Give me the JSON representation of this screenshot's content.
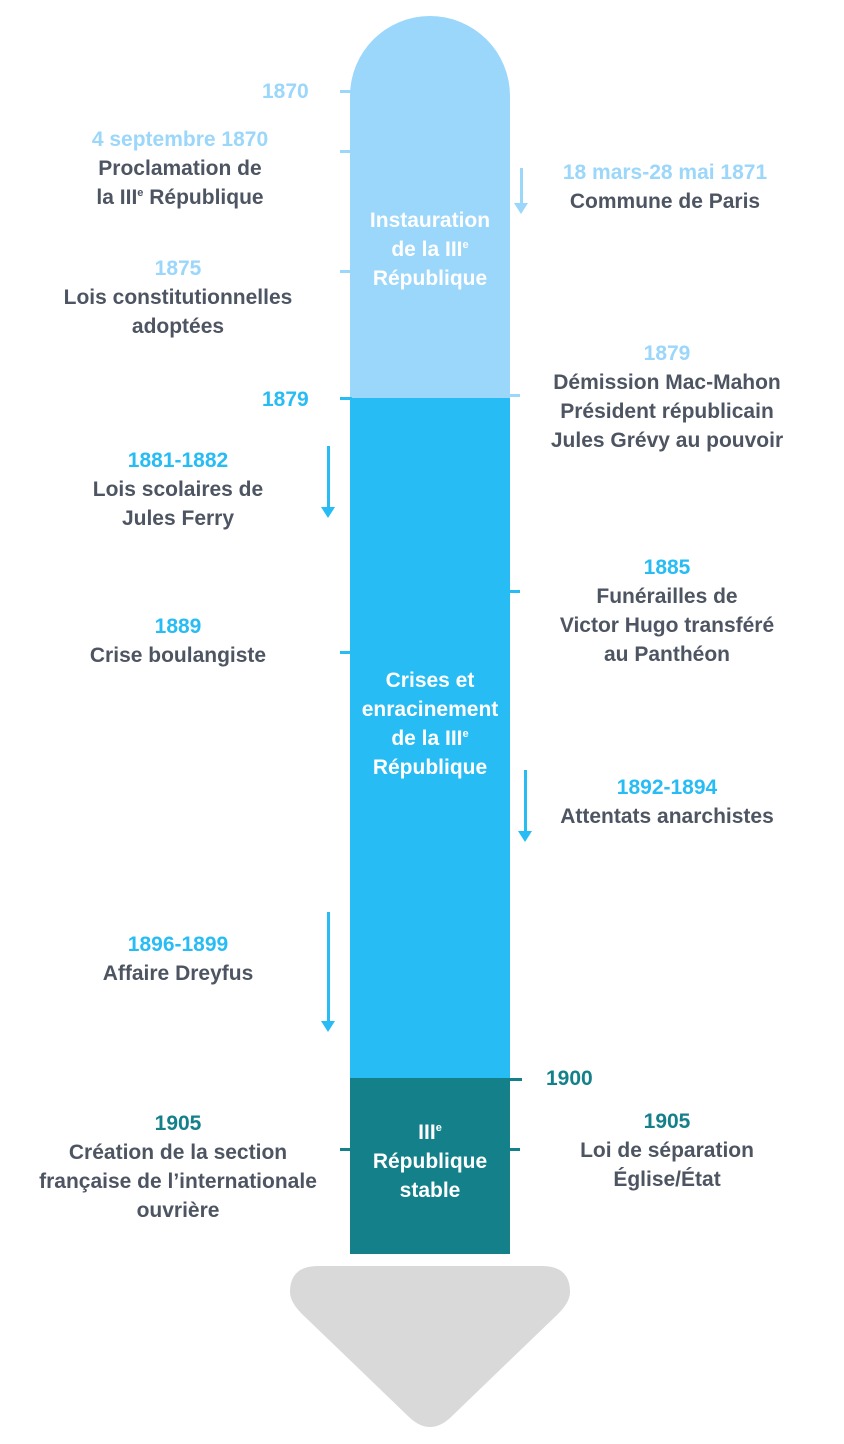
{
  "segments": {
    "instauration": {
      "label_1": "Instauration",
      "label_2": "de la III",
      "label_2_sup": "e",
      "label_3": "République"
    },
    "crises": {
      "label_1": "Crises et",
      "label_2": "enracinement",
      "label_3": "de la III",
      "label_3_sup": "e",
      "label_4": "République"
    },
    "stable": {
      "label_1": "III",
      "label_1_sup": "e",
      "label_2": "République",
      "label_3": "stable"
    }
  },
  "axis_years": {
    "y1870": "1870",
    "y1879": "1879",
    "y1900": "1900"
  },
  "events": {
    "sept1870": {
      "date": "4 septembre 1870",
      "line1": "Proclamation de",
      "line2_a": "la III",
      "line2_sup": "e",
      "line2_b": " République"
    },
    "commune": {
      "date": "18 mars-28 mai 1871",
      "line1": "Commune de Paris"
    },
    "lois1875": {
      "date": "1875",
      "line1": "Lois constitutionnelles",
      "line2": "adoptées"
    },
    "mac1879": {
      "date": "1879",
      "line1": "Démission Mac-Mahon",
      "line2": "Président républicain",
      "line3": "Jules Grévy au pouvoir"
    },
    "ferry": {
      "date": "1881-1882",
      "line1": "Lois scolaires de",
      "line2": "Jules Ferry"
    },
    "hugo": {
      "date": "1885",
      "line1": "Funérailles de",
      "line2": "Victor Hugo transféré",
      "line3": "au Panthéon"
    },
    "boulanger": {
      "date": "1889",
      "line1": "Crise boulangiste"
    },
    "anarchistes": {
      "date": "1892-1894",
      "line1": "Attentats anarchistes"
    },
    "dreyfus": {
      "date": "1896-1899",
      "line1": "Affaire Dreyfus"
    },
    "sfio": {
      "date": "1905",
      "line1": "Création de la section",
      "line2": "française de l’internationale",
      "line3": "ouvrière"
    },
    "laicite": {
      "date": "1905",
      "line1": "Loi de séparation",
      "line2": "Église/État"
    }
  },
  "colors": {
    "phase1": "#9bd6fb",
    "phase2": "#28bcf5",
    "phase3": "#13808a",
    "arrow_head": "#d9d9d9",
    "text": "#4e5562"
  }
}
